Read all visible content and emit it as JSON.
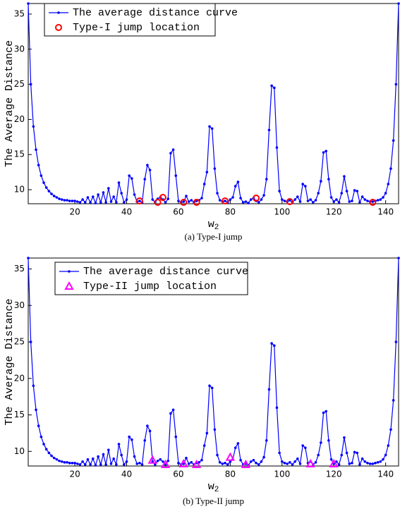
{
  "chart_data": [
    {
      "type": "line",
      "xlabel": "w",
      "xlabel_sub": "2",
      "ylabel": "The Average Distance",
      "caption": "(a) Type-I jump",
      "x": [
        2,
        3,
        4,
        5,
        6,
        7,
        8,
        9,
        10,
        11,
        12,
        13,
        14,
        15,
        16,
        17,
        18,
        19,
        20,
        21,
        22,
        23,
        24,
        25,
        26,
        27,
        28,
        29,
        30,
        31,
        32,
        33,
        34,
        35,
        36,
        37,
        38,
        39,
        40,
        41,
        42,
        43,
        44,
        45,
        46,
        47,
        48,
        49,
        50,
        51,
        52,
        53,
        54,
        55,
        56,
        57,
        58,
        59,
        60,
        61,
        62,
        63,
        64,
        65,
        66,
        67,
        68,
        69,
        70,
        71,
        72,
        73,
        74,
        75,
        76,
        77,
        78,
        79,
        80,
        81,
        82,
        83,
        84,
        85,
        86,
        87,
        88,
        89,
        90,
        91,
        92,
        93,
        94,
        95,
        96,
        97,
        98,
        99,
        100,
        101,
        102,
        103,
        104,
        105,
        106,
        107,
        108,
        109,
        110,
        111,
        112,
        113,
        114,
        115,
        116,
        117,
        118,
        119,
        120,
        121,
        122,
        123,
        124,
        125,
        126,
        127,
        128,
        129,
        130,
        131,
        132,
        133,
        134,
        135,
        136,
        137,
        138,
        139,
        140,
        141,
        142,
        143,
        144,
        145
      ],
      "series": [
        {
          "name": "The average distance curve",
          "color": "#0000ff",
          "marker": "dot",
          "values": [
            36.5,
            25,
            19,
            15.7,
            13.5,
            12,
            11,
            10.3,
            9.8,
            9.4,
            9.1,
            8.9,
            8.7,
            8.6,
            8.5,
            8.5,
            8.4,
            8.4,
            8.4,
            8.3,
            8.2,
            8.6,
            8.2,
            8.9,
            8.2,
            9.0,
            8.1,
            9.3,
            8.2,
            9.6,
            8.2,
            10.2,
            8.3,
            9.0,
            8.2,
            11.0,
            9.5,
            8.2,
            8.6,
            12.0,
            11.6,
            9.3,
            8.3,
            8.4,
            8.2,
            11.5,
            13.5,
            12.8,
            8.6,
            8.2,
            8.7,
            8.9,
            8.6,
            8.2,
            8.7,
            15.2,
            15.7,
            12,
            8.4,
            8.2,
            8.3,
            9.1,
            8.3,
            8.5,
            8.2,
            8.4,
            8.5,
            8.8,
            10.8,
            12.5,
            19,
            18.7,
            13,
            9.5,
            8.5,
            8.3,
            8.4,
            8.2,
            8.6,
            8.9,
            10.5,
            11.1,
            8.8,
            8.2,
            8.3,
            8.1,
            8.6,
            8.8,
            8.4,
            8.2,
            8.6,
            9.2,
            11.5,
            18.5,
            24.8,
            24.5,
            16,
            9.8,
            8.6,
            8.4,
            8.3,
            8.5,
            8.2,
            8.6,
            9.0,
            8.3,
            10.8,
            10.5,
            8.4,
            8.6,
            8.2,
            8.5,
            9.5,
            11.2,
            15.3,
            15.5,
            11.5,
            8.9,
            8.3,
            8.6,
            8.2,
            9.5,
            11.9,
            9.8,
            8.3,
            8.4,
            9.9,
            9.8,
            8.2,
            9.0,
            8.6,
            8.4,
            8.3,
            8.3,
            8.4,
            8.5,
            8.6,
            8.9,
            9.5,
            10.8,
            13,
            17,
            25,
            36.5
          ]
        },
        {
          "name": "Type-I jump location",
          "color": "#ff0000",
          "marker": "circle",
          "x": [
            45,
            52,
            54,
            62,
            67,
            78,
            90,
            103,
            135
          ],
          "values": [
            8.4,
            8.2,
            8.9,
            8.2,
            8.2,
            8.4,
            8.8,
            8.3,
            8.2
          ]
        }
      ],
      "xlim": [
        2,
        145
      ],
      "xticks": [
        20,
        40,
        60,
        80,
        100,
        120,
        140
      ],
      "ylim": [
        8,
        36.5
      ],
      "yticks": [
        10,
        15,
        20,
        25,
        30,
        35
      ],
      "legend": "upper left"
    },
    {
      "type": "line",
      "xlabel": "w",
      "xlabel_sub": "2",
      "ylabel": "The Average Distance",
      "caption": "(b) Type-II jump",
      "x": [
        2,
        3,
        4,
        5,
        6,
        7,
        8,
        9,
        10,
        11,
        12,
        13,
        14,
        15,
        16,
        17,
        18,
        19,
        20,
        21,
        22,
        23,
        24,
        25,
        26,
        27,
        28,
        29,
        30,
        31,
        32,
        33,
        34,
        35,
        36,
        37,
        38,
        39,
        40,
        41,
        42,
        43,
        44,
        45,
        46,
        47,
        48,
        49,
        50,
        51,
        52,
        53,
        54,
        55,
        56,
        57,
        58,
        59,
        60,
        61,
        62,
        63,
        64,
        65,
        66,
        67,
        68,
        69,
        70,
        71,
        72,
        73,
        74,
        75,
        76,
        77,
        78,
        79,
        80,
        81,
        82,
        83,
        84,
        85,
        86,
        87,
        88,
        89,
        90,
        91,
        92,
        93,
        94,
        95,
        96,
        97,
        98,
        99,
        100,
        101,
        102,
        103,
        104,
        105,
        106,
        107,
        108,
        109,
        110,
        111,
        112,
        113,
        114,
        115,
        116,
        117,
        118,
        119,
        120,
        121,
        122,
        123,
        124,
        125,
        126,
        127,
        128,
        129,
        130,
        131,
        132,
        133,
        134,
        135,
        136,
        137,
        138,
        139,
        140,
        141,
        142,
        143,
        144,
        145
      ],
      "series": [
        {
          "name": "The average distance curve",
          "color": "#0000ff",
          "marker": "dot",
          "values": [
            36.5,
            25,
            19,
            15.7,
            13.5,
            12,
            11,
            10.3,
            9.8,
            9.4,
            9.1,
            8.9,
            8.7,
            8.6,
            8.5,
            8.5,
            8.4,
            8.4,
            8.4,
            8.3,
            8.2,
            8.6,
            8.2,
            8.9,
            8.2,
            9.0,
            8.1,
            9.3,
            8.2,
            9.6,
            8.2,
            10.2,
            8.3,
            9.0,
            8.2,
            11.0,
            9.5,
            8.2,
            8.6,
            12.0,
            11.6,
            9.3,
            8.3,
            8.4,
            8.2,
            11.5,
            13.5,
            12.8,
            8.6,
            8.2,
            8.7,
            8.9,
            8.6,
            8.2,
            8.7,
            15.2,
            15.7,
            12,
            8.4,
            8.2,
            8.3,
            9.1,
            8.3,
            8.5,
            8.2,
            8.4,
            8.5,
            8.8,
            10.8,
            12.5,
            19,
            18.7,
            13,
            9.5,
            8.5,
            8.3,
            8.4,
            8.2,
            8.6,
            8.9,
            10.5,
            11.1,
            8.8,
            8.2,
            8.3,
            8.1,
            8.6,
            8.8,
            8.4,
            8.2,
            8.6,
            9.2,
            11.5,
            18.5,
            24.8,
            24.5,
            16,
            9.8,
            8.6,
            8.4,
            8.3,
            8.5,
            8.2,
            8.6,
            9.0,
            8.3,
            10.8,
            10.5,
            8.4,
            8.6,
            8.2,
            8.5,
            9.5,
            11.2,
            15.3,
            15.5,
            11.5,
            8.9,
            8.3,
            8.6,
            8.2,
            9.5,
            11.9,
            9.8,
            8.3,
            8.4,
            9.9,
            9.8,
            8.2,
            9.0,
            8.6,
            8.4,
            8.3,
            8.3,
            8.4,
            8.5,
            8.6,
            8.9,
            9.5,
            10.8,
            13,
            17,
            25,
            36.5
          ]
        },
        {
          "name": "Type-II jump location",
          "color": "#ff00ff",
          "marker": "triangle",
          "x": [
            50,
            55,
            62,
            67,
            80,
            86,
            111,
            120
          ],
          "values": [
            8.8,
            8.2,
            8.3,
            8.2,
            9.2,
            8.2,
            8.3,
            8.3
          ]
        }
      ],
      "xlim": [
        2,
        145
      ],
      "xticks": [
        20,
        40,
        60,
        80,
        100,
        120,
        140
      ],
      "ylim": [
        8,
        36.5
      ],
      "yticks": [
        10,
        15,
        20,
        25,
        30,
        35
      ],
      "legend": "upper left"
    }
  ]
}
